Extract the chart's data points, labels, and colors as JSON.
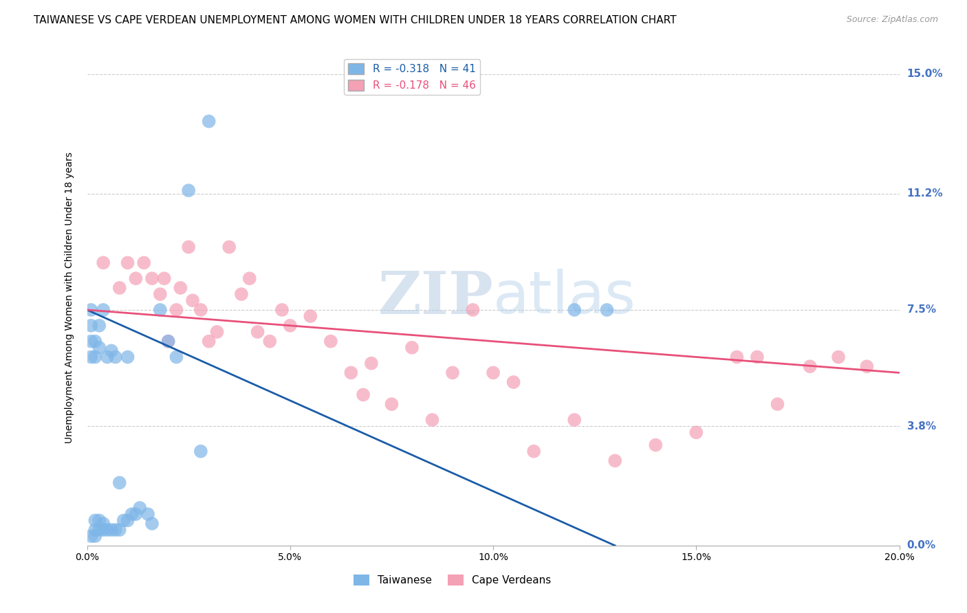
{
  "title": "TAIWANESE VS CAPE VERDEAN UNEMPLOYMENT AMONG WOMEN WITH CHILDREN UNDER 18 YEARS CORRELATION CHART",
  "source": "Source: ZipAtlas.com",
  "ylabel": "Unemployment Among Women with Children Under 18 years",
  "xlabel_ticks": [
    "0.0%",
    "5.0%",
    "10.0%",
    "15.0%",
    "20.0%"
  ],
  "xlabel_vals": [
    0.0,
    0.05,
    0.1,
    0.15,
    0.2
  ],
  "ylabel_ticks": [
    "0.0%",
    "3.8%",
    "7.5%",
    "11.2%",
    "15.0%"
  ],
  "ylabel_vals": [
    0.0,
    0.038,
    0.075,
    0.112,
    0.15
  ],
  "xlim": [
    0.0,
    0.2
  ],
  "ylim": [
    0.0,
    0.158
  ],
  "taiwanese_R": -0.318,
  "taiwanese_N": 41,
  "capeverdean_R": -0.178,
  "capeverdean_N": 46,
  "taiwanese_color": "#7EB6E8",
  "capeverdean_color": "#F4A0B5",
  "trendline_taiwanese_color": "#1A5CA8",
  "trendline_capeverdean_color": "#E8507A",
  "taiwanese_x": [
    0.001,
    0.001,
    0.001,
    0.001,
    0.001,
    0.002,
    0.002,
    0.002,
    0.002,
    0.002,
    0.003,
    0.003,
    0.003,
    0.003,
    0.004,
    0.004,
    0.004,
    0.005,
    0.005,
    0.006,
    0.006,
    0.007,
    0.007,
    0.008,
    0.008,
    0.009,
    0.01,
    0.01,
    0.011,
    0.012,
    0.013,
    0.015,
    0.016,
    0.018,
    0.02,
    0.022,
    0.025,
    0.028,
    0.03,
    0.12,
    0.128
  ],
  "taiwanese_y": [
    0.06,
    0.065,
    0.07,
    0.075,
    0.003,
    0.005,
    0.008,
    0.003,
    0.06,
    0.065,
    0.005,
    0.008,
    0.063,
    0.07,
    0.005,
    0.007,
    0.075,
    0.005,
    0.06,
    0.005,
    0.062,
    0.005,
    0.06,
    0.005,
    0.02,
    0.008,
    0.008,
    0.06,
    0.01,
    0.01,
    0.012,
    0.01,
    0.007,
    0.075,
    0.065,
    0.06,
    0.113,
    0.03,
    0.135,
    0.075,
    0.075
  ],
  "capeverdean_x": [
    0.004,
    0.008,
    0.01,
    0.012,
    0.014,
    0.016,
    0.018,
    0.019,
    0.02,
    0.022,
    0.023,
    0.025,
    0.026,
    0.028,
    0.03,
    0.032,
    0.035,
    0.038,
    0.04,
    0.042,
    0.045,
    0.048,
    0.05,
    0.055,
    0.06,
    0.065,
    0.068,
    0.07,
    0.075,
    0.08,
    0.085,
    0.09,
    0.095,
    0.1,
    0.105,
    0.11,
    0.12,
    0.13,
    0.14,
    0.15,
    0.16,
    0.165,
    0.17,
    0.178,
    0.185,
    0.192
  ],
  "capeverdean_y": [
    0.09,
    0.082,
    0.09,
    0.085,
    0.09,
    0.085,
    0.08,
    0.085,
    0.065,
    0.075,
    0.082,
    0.095,
    0.078,
    0.075,
    0.065,
    0.068,
    0.095,
    0.08,
    0.085,
    0.068,
    0.065,
    0.075,
    0.07,
    0.073,
    0.065,
    0.055,
    0.048,
    0.058,
    0.045,
    0.063,
    0.04,
    0.055,
    0.075,
    0.055,
    0.052,
    0.03,
    0.04,
    0.027,
    0.032,
    0.036,
    0.06,
    0.06,
    0.045,
    0.057,
    0.06,
    0.057
  ],
  "watermark_zip": "ZIP",
  "watermark_atlas": "atlas",
  "background_color": "#FFFFFF",
  "plot_bg_color": "#FFFFFF",
  "grid_color": "#CCCCCC",
  "right_label_color": "#4472C4",
  "title_fontsize": 11,
  "axis_label_fontsize": 10,
  "tick_fontsize": 10
}
